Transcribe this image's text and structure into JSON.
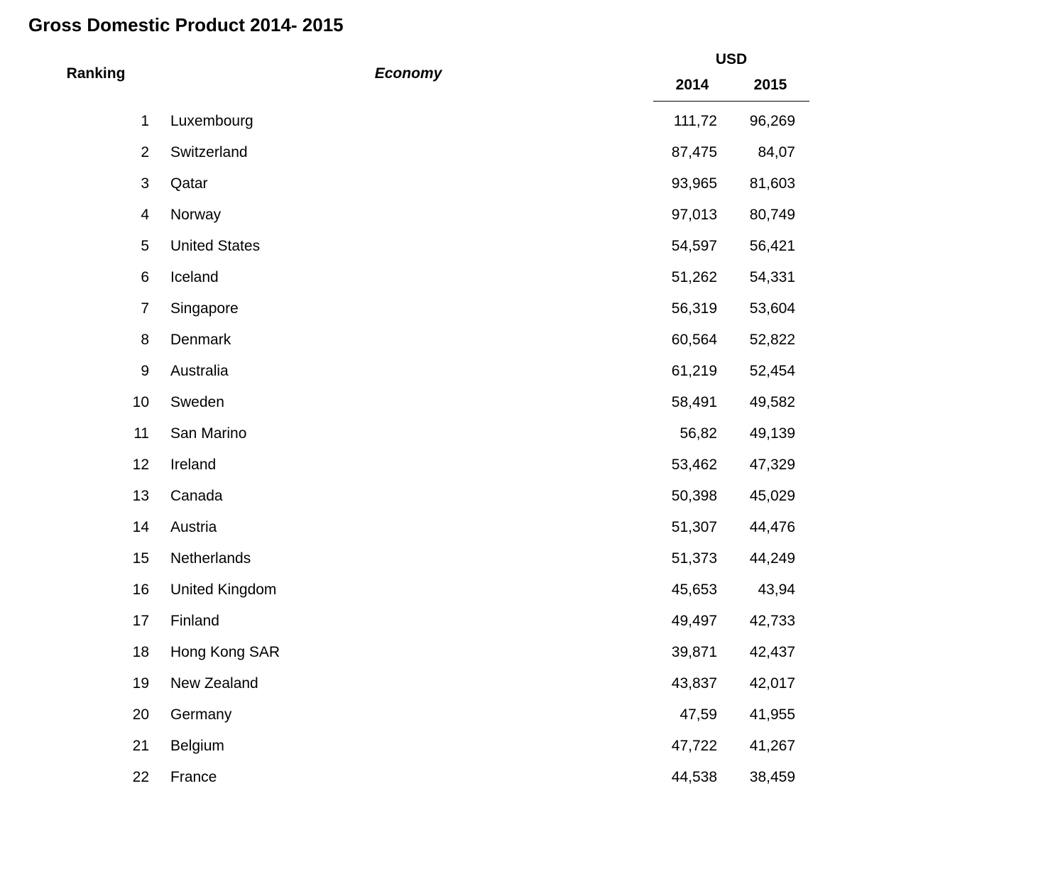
{
  "title": "Gross Domestic Product 2014- 2015",
  "headers": {
    "ranking": "Ranking",
    "economy": "Economy",
    "usd": "USD",
    "year2014": "2014",
    "year2015": "2015"
  },
  "table": {
    "type": "table",
    "columns": [
      "Ranking",
      "Economy",
      "2014",
      "2015"
    ],
    "font_size": 21,
    "header_font_size": 21,
    "text_color": "#000000",
    "background_color": "#ffffff",
    "border_color": "#000000",
    "column_alignment": [
      "right",
      "left",
      "right",
      "right"
    ],
    "rows": [
      {
        "rank": "1",
        "economy": "Luxembourg",
        "y2014": "111,72",
        "y2015": "96,269"
      },
      {
        "rank": "2",
        "economy": "Switzerland",
        "y2014": "87,475",
        "y2015": "84,07"
      },
      {
        "rank": "3",
        "economy": "Qatar",
        "y2014": "93,965",
        "y2015": "81,603"
      },
      {
        "rank": "4",
        "economy": "Norway",
        "y2014": "97,013",
        "y2015": "80,749"
      },
      {
        "rank": "5",
        "economy": "United States",
        "y2014": "54,597",
        "y2015": "56,421"
      },
      {
        "rank": "6",
        "economy": "Iceland",
        "y2014": "51,262",
        "y2015": "54,331"
      },
      {
        "rank": "7",
        "economy": "Singapore",
        "y2014": "56,319",
        "y2015": "53,604"
      },
      {
        "rank": "8",
        "economy": "Denmark",
        "y2014": "60,564",
        "y2015": "52,822"
      },
      {
        "rank": "9",
        "economy": "Australia",
        "y2014": "61,219",
        "y2015": "52,454"
      },
      {
        "rank": "10",
        "economy": "Sweden",
        "y2014": "58,491",
        "y2015": "49,582"
      },
      {
        "rank": "11",
        "economy": "San Marino",
        "y2014": "56,82",
        "y2015": "49,139"
      },
      {
        "rank": "12",
        "economy": "Ireland",
        "y2014": "53,462",
        "y2015": "47,329"
      },
      {
        "rank": "13",
        "economy": "Canada",
        "y2014": "50,398",
        "y2015": "45,029"
      },
      {
        "rank": "14",
        "economy": "Austria",
        "y2014": "51,307",
        "y2015": "44,476"
      },
      {
        "rank": "15",
        "economy": "Netherlands",
        "y2014": "51,373",
        "y2015": "44,249"
      },
      {
        "rank": "16",
        "economy": "United Kingdom",
        "y2014": "45,653",
        "y2015": "43,94"
      },
      {
        "rank": "17",
        "economy": "Finland",
        "y2014": "49,497",
        "y2015": "42,733"
      },
      {
        "rank": "18",
        "economy": "Hong Kong SAR",
        "y2014": "39,871",
        "y2015": "42,437"
      },
      {
        "rank": "19",
        "economy": "New Zealand",
        "y2014": "43,837",
        "y2015": "42,017"
      },
      {
        "rank": "20",
        "economy": "Germany",
        "y2014": "47,59",
        "y2015": "41,955"
      },
      {
        "rank": "21",
        "economy": "Belgium",
        "y2014": "47,722",
        "y2015": "41,267"
      },
      {
        "rank": "22",
        "economy": "France",
        "y2014": "44,538",
        "y2015": "38,459"
      }
    ]
  }
}
